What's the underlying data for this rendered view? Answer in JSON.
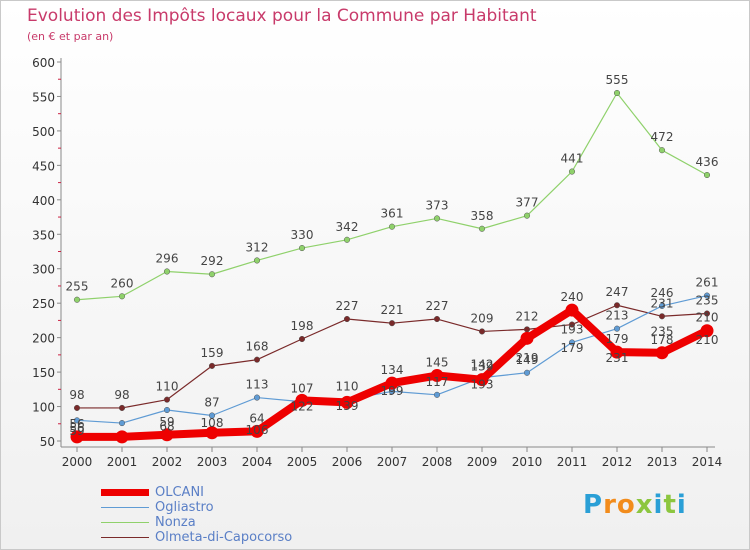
{
  "title": "Evolution des Impôts locaux pour la Commune par Habitant",
  "subtitle": "(en € et par an)",
  "logo": {
    "letters": [
      "P",
      "r",
      "o",
      "x",
      "i",
      "t",
      "i"
    ],
    "colors": [
      "#2a9fd6",
      "#f28c1c",
      "#f28c1c",
      "#8cc63f",
      "#2a9fd6",
      "#8cc63f",
      "#2a9fd6"
    ]
  },
  "chart_data": {
    "type": "line",
    "x": [
      "2000",
      "2001",
      "2002",
      "2003",
      "2004",
      "2005",
      "2006",
      "2007",
      "2008",
      "2009",
      "2010",
      "2011",
      "2012",
      "2013",
      "2014"
    ],
    "yticks": [
      50,
      100,
      150,
      200,
      250,
      300,
      350,
      400,
      450,
      500,
      550,
      600
    ],
    "ylim": [
      50,
      600
    ],
    "grid": false,
    "legend_position": "bottom-left",
    "series": [
      {
        "name": "Nonza",
        "color": "#8fd16b",
        "width": 1.2,
        "marker": 2.8,
        "values": [
          255,
          260,
          296,
          292,
          312,
          330,
          342,
          361,
          373,
          358,
          377,
          441,
          555,
          472,
          436
        ],
        "labels": [
          "255",
          "260",
          "296",
          "292",
          "312",
          "330",
          "342",
          "361",
          "373",
          "358",
          "377",
          "441",
          "555",
          "472",
          "436"
        ]
      },
      {
        "name": "Olmeta-di-Capocorso",
        "color": "#7a2a2a",
        "width": 1.2,
        "marker": 2.8,
        "values": [
          98,
          98,
          110,
          159,
          168,
          198,
          227,
          221,
          227,
          209,
          212,
          219,
          247,
          231,
          235
        ],
        "labels": [
          "98",
          "98",
          "110",
          "159",
          "168",
          "198",
          "227",
          "221",
          "227",
          "209",
          "212",
          "",
          "247",
          "231",
          "235"
        ]
      },
      {
        "name": "Ogliastro",
        "color": "#5f9bd4",
        "width": 1.2,
        "marker": 2.8,
        "values": [
          80,
          76,
          95,
          87,
          113,
          107,
          110,
          122,
          117,
          142,
          149,
          193,
          213,
          246,
          261
        ],
        "labels": [
          "",
          "",
          "",
          "87",
          "113",
          "107",
          "110",
          "",
          "117",
          "142",
          "149",
          "193",
          "213",
          "246",
          "261"
        ]
      },
      {
        "name": "OLCANI",
        "color": "#ee0000",
        "width": 8,
        "marker": 6.5,
        "values": [
          56,
          56,
          59,
          62,
          64,
          109,
          106,
          134,
          145,
          139,
          199,
          240,
          179,
          178,
          210
        ],
        "labels": [
          "56",
          "",
          "59",
          "",
          "64",
          "",
          "",
          "134",
          "145",
          "139",
          "",
          "240",
          "179",
          "178",
          "210"
        ]
      }
    ],
    "extra_labels": [
      "56",
      "59",
      "68",
      "108",
      "106",
      "122",
      "139",
      "199",
      "193",
      "219",
      "179",
      "231",
      "235",
      "210"
    ],
    "legend": [
      {
        "name": "OLCANI",
        "color": "#ee0000",
        "width": 7
      },
      {
        "name": "Ogliastro",
        "color": "#5f9bd4",
        "width": 1.5
      },
      {
        "name": "Nonza",
        "color": "#8fd16b",
        "width": 1.5
      },
      {
        "name": "Olmeta-di-Capocorso",
        "color": "#7a2a2a",
        "width": 1.5
      }
    ]
  }
}
